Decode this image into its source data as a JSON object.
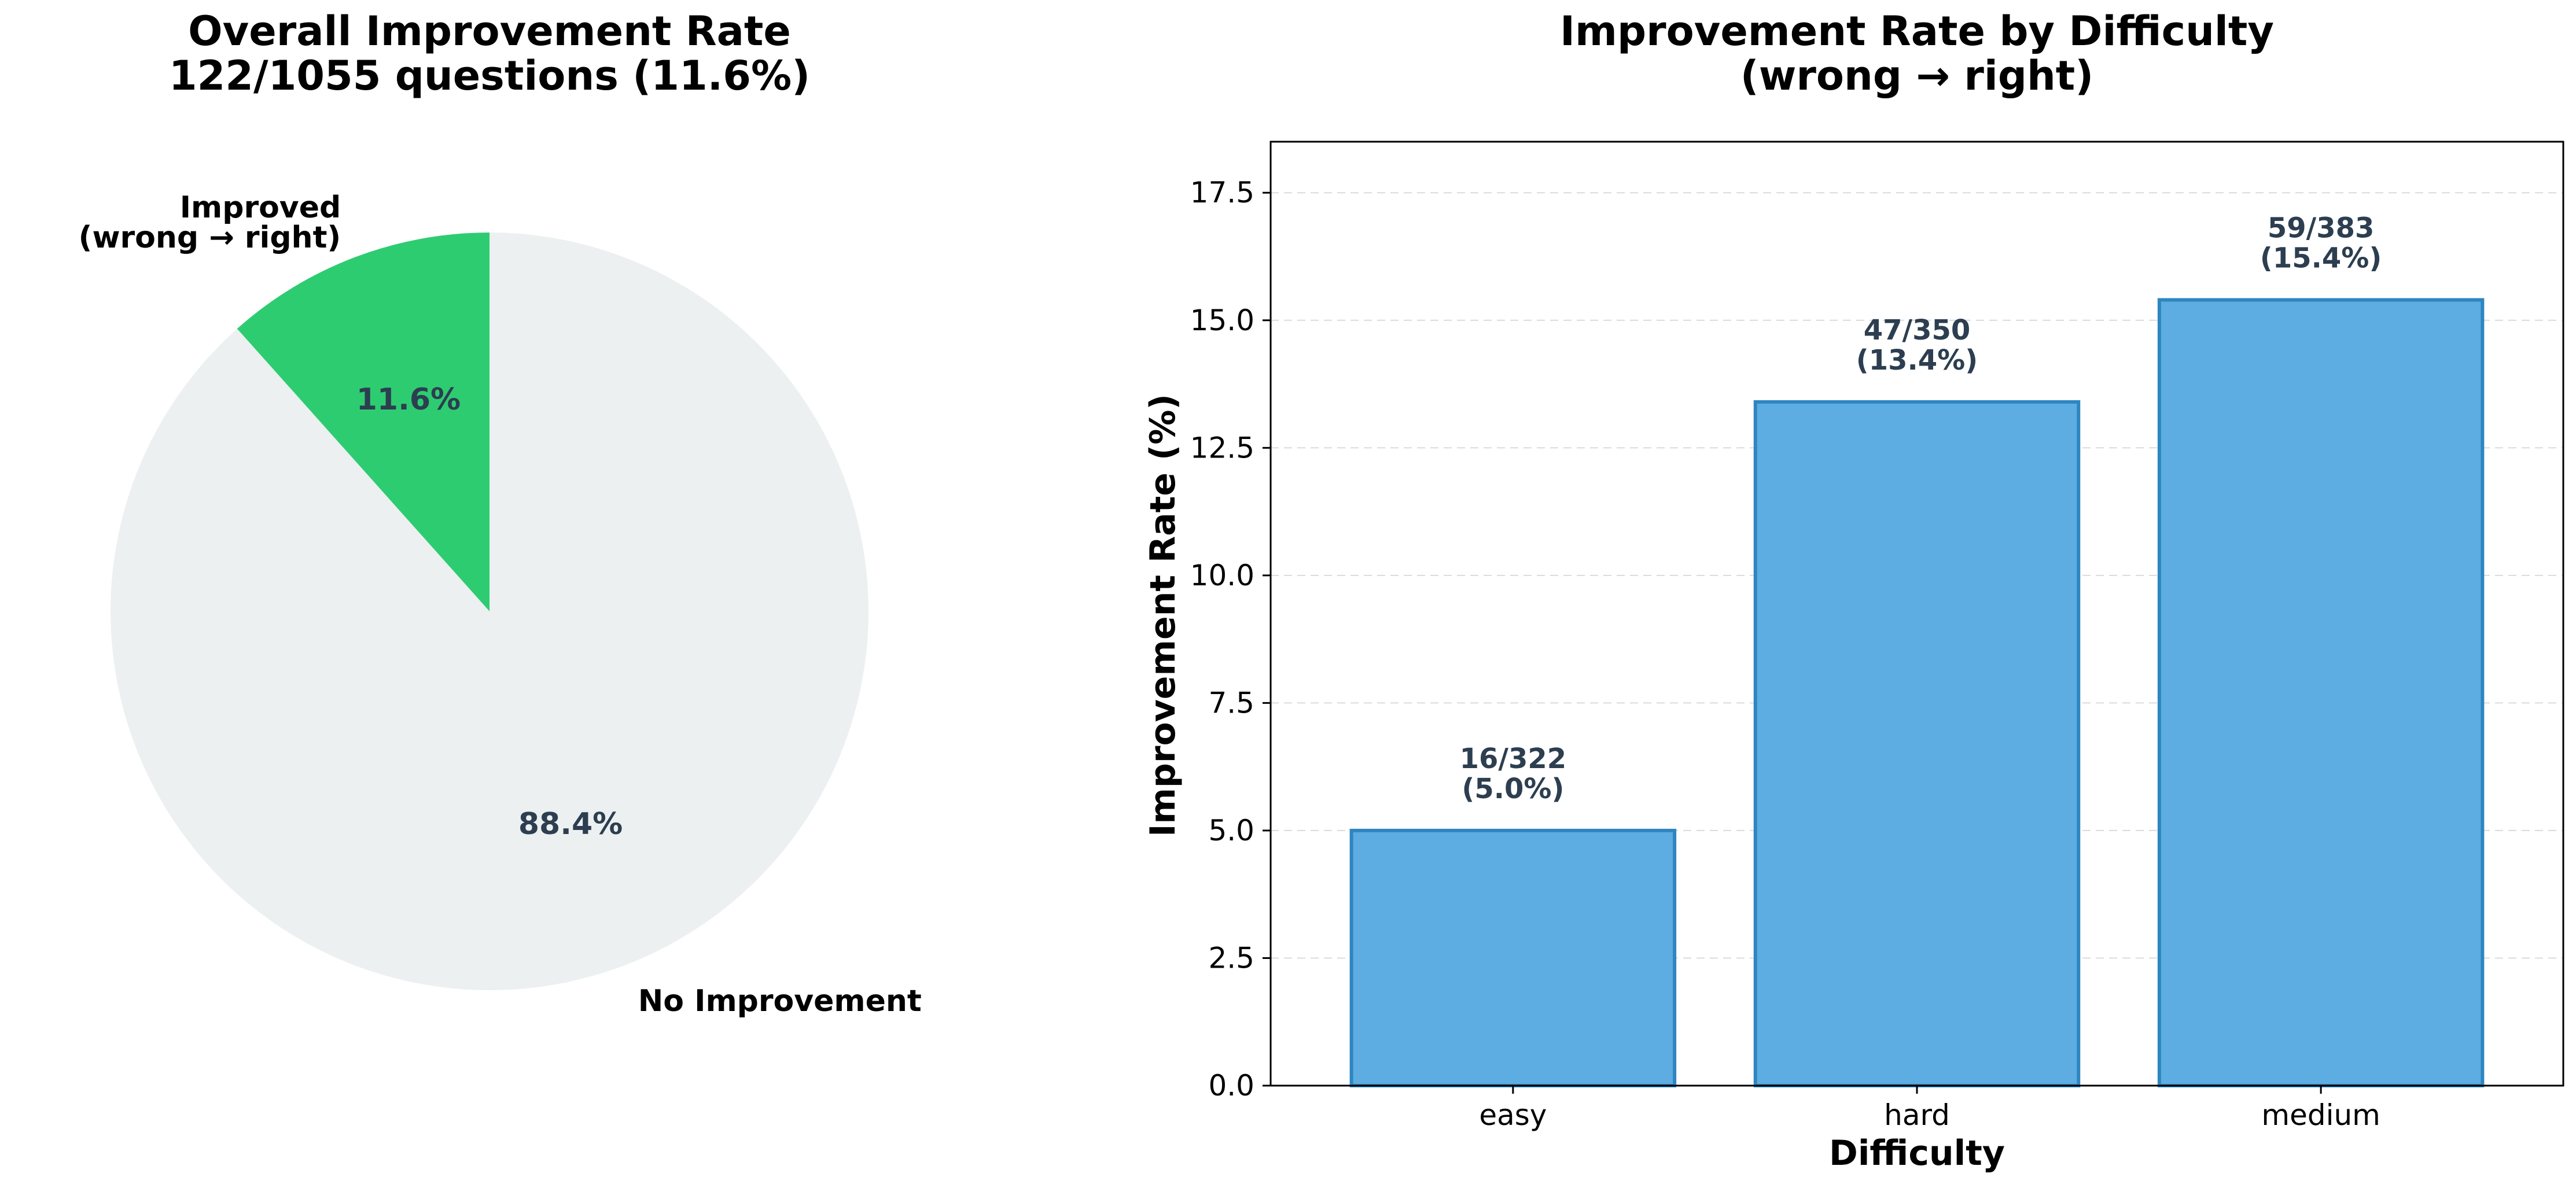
{
  "colors": {
    "improved": "#2ecc71",
    "no_improvement": "#ecf0f1",
    "bar_fill": "#5dade2",
    "bar_edge": "#2e86c1",
    "label_text": "#2c3e50"
  },
  "chart_data": [
    {
      "type": "pie",
      "title": [
        "Overall Improvement Rate",
        "122/1055 questions (11.6%)"
      ],
      "slices": [
        {
          "label": [
            "Improved",
            "(wrong → right)"
          ],
          "value": 11.6,
          "pct_label": "11.6%",
          "color": "#2ecc71"
        },
        {
          "label": [
            "No Improvement"
          ],
          "value": 88.4,
          "pct_label": "88.4%",
          "color": "#ecf0f1"
        }
      ],
      "start_angle_deg": 90,
      "direction": "counterclockwise"
    },
    {
      "type": "bar",
      "title": [
        "Improvement Rate by Difficulty",
        "(wrong → right)"
      ],
      "categories": [
        "easy",
        "hard",
        "medium"
      ],
      "values": [
        5.0,
        13.4,
        15.4
      ],
      "value_labels": [
        [
          "16/322",
          "(5.0%)"
        ],
        [
          "47/350",
          "(13.4%)"
        ],
        [
          "59/383",
          "(15.4%)"
        ]
      ],
      "xlabel": "Difficulty",
      "ylabel": "Improvement Rate (%)",
      "ylim": [
        0,
        18.5
      ],
      "yticks": [
        0.0,
        2.5,
        5.0,
        7.5,
        10.0,
        12.5,
        15.0,
        17.5
      ],
      "ytick_labels": [
        "0.0",
        "2.5",
        "5.0",
        "7.5",
        "10.0",
        "12.5",
        "15.0",
        "17.5"
      ],
      "grid": "y-dashed"
    }
  ]
}
